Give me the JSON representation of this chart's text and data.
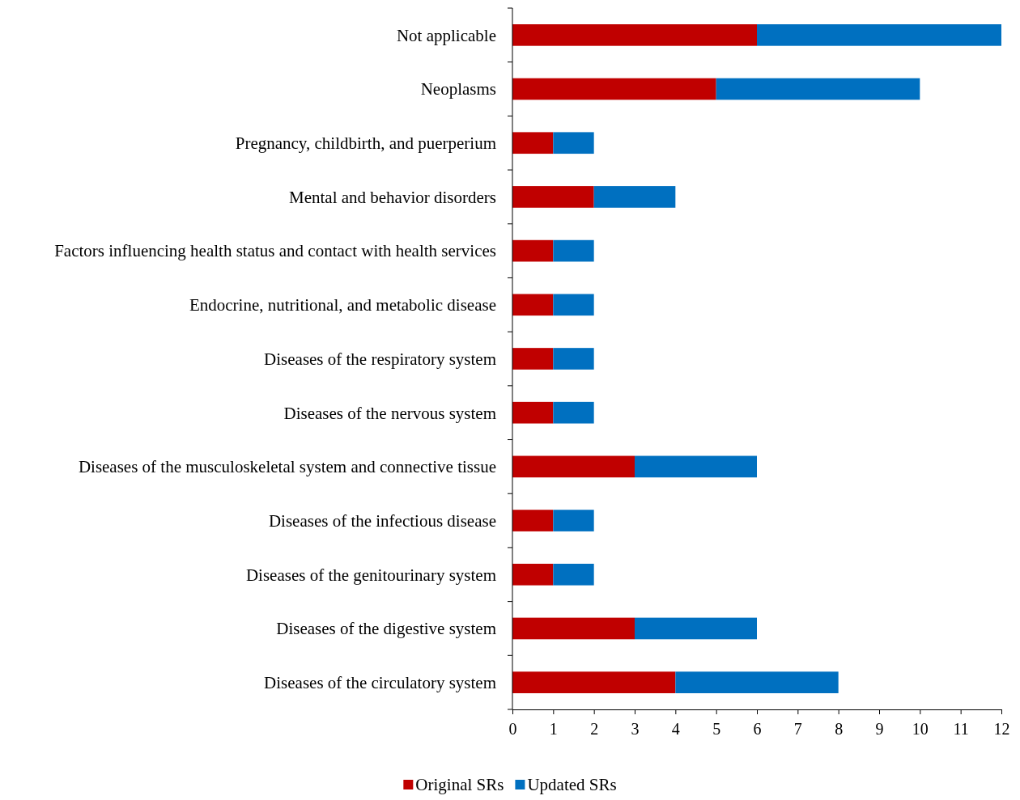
{
  "chart_data": {
    "type": "bar",
    "orientation": "horizontal",
    "stacked": true,
    "categories": [
      "Not applicable",
      "Neoplasms",
      "Pregnancy, childbirth, and puerperium",
      "Mental and behavior disorders",
      "Factors influencing health status and contact with health services",
      "Endocrine, nutritional, and metabolic disease",
      "Diseases of the respiratory system",
      "Diseases of the nervous system",
      "Diseases of the musculoskeletal system and connective tissue",
      "Diseases of the infectious disease",
      "Diseases of the genitourinary system",
      "Diseases of the digestive system",
      "Diseases of the circulatory system"
    ],
    "series": [
      {
        "name": "Original SRs",
        "color": "#c00000",
        "values": [
          6,
          5,
          1,
          2,
          1,
          1,
          1,
          1,
          3,
          1,
          1,
          3,
          4
        ]
      },
      {
        "name": "Updated SRs",
        "color": "#0070c0",
        "values": [
          6,
          5,
          1,
          2,
          1,
          1,
          1,
          1,
          3,
          1,
          1,
          3,
          4
        ]
      }
    ],
    "xlim": [
      0,
      12
    ],
    "xticks": [
      0,
      1,
      2,
      3,
      4,
      5,
      6,
      7,
      8,
      9,
      10,
      11,
      12
    ],
    "grid": false,
    "legend": "bottom"
  }
}
